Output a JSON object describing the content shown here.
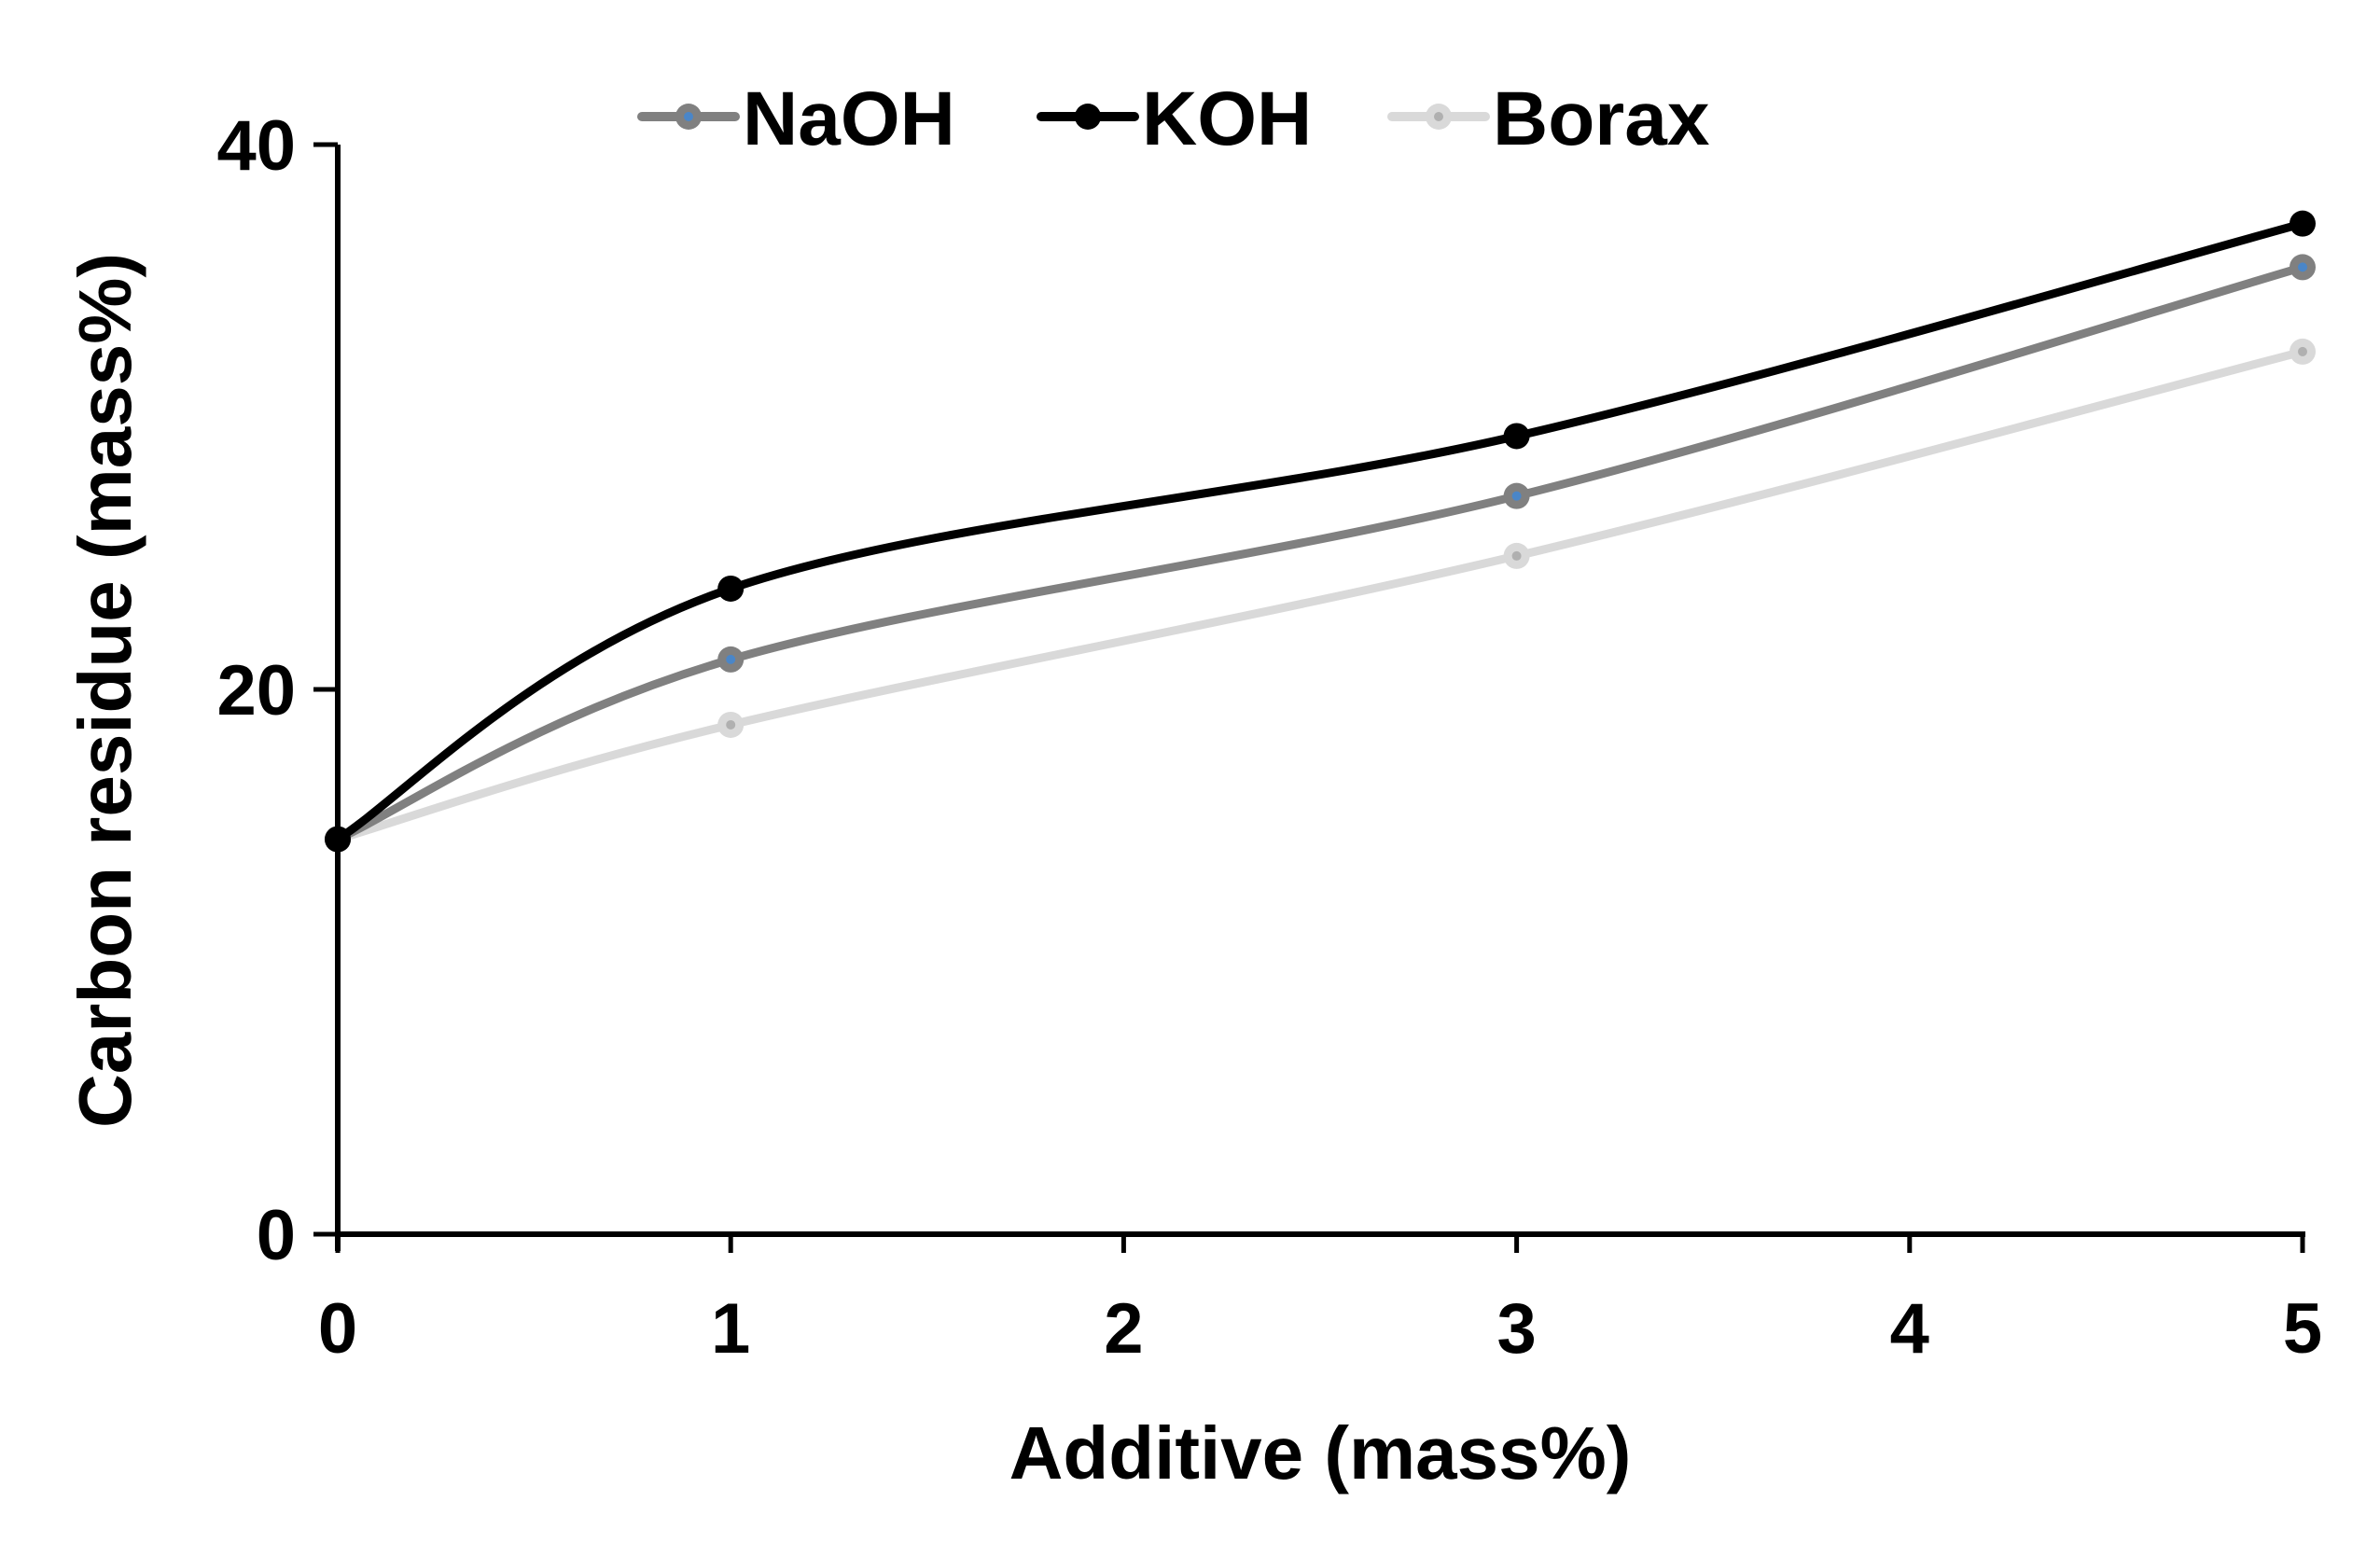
{
  "chart_data": {
    "type": "line",
    "title": "",
    "xlabel": "Additive (mass%)",
    "ylabel": "Carbon residue (mass%)",
    "xlim": [
      0,
      5
    ],
    "ylim": [
      0,
      40
    ],
    "x_ticks": [
      0,
      1,
      2,
      3,
      4,
      5
    ],
    "y_ticks": [
      0,
      20,
      40
    ],
    "grid": false,
    "smooth": true,
    "legend": {
      "placement": "top-center",
      "orientation": "horizontal"
    },
    "series": [
      {
        "name": "NaOH",
        "color": "#808080",
        "marker_color": "#4a86c8",
        "x": [
          0,
          1,
          3,
          5
        ],
        "y": [
          14.5,
          21.1,
          27.1,
          35.5
        ]
      },
      {
        "name": "KOH",
        "color": "#000000",
        "marker_color": "#000000",
        "x": [
          0,
          1,
          3,
          5
        ],
        "y": [
          14.5,
          23.7,
          29.3,
          37.1
        ]
      },
      {
        "name": "Borax",
        "color": "#d9d9d9",
        "marker_color": "#b0b0b0",
        "x": [
          0,
          1,
          3,
          5
        ],
        "y": [
          14.5,
          18.7,
          24.9,
          32.4
        ]
      }
    ]
  }
}
